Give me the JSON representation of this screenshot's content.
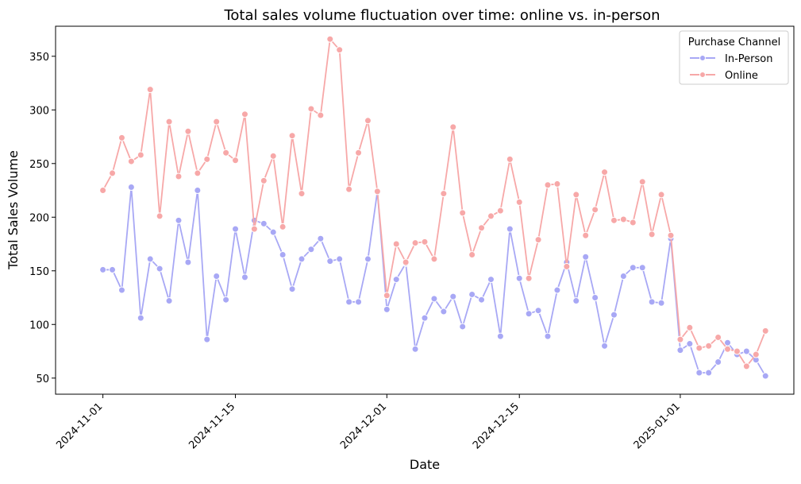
{
  "colors": {
    "in_person": "#a8a8f5",
    "online": "#f7a8a8"
  },
  "chart_data": {
    "type": "line",
    "title": "Total sales volume fluctuation over time: online vs. in-person",
    "xlabel": "Date",
    "ylabel": "Total Sales Volume",
    "x_start": "2024-11-01",
    "x_tick_labels": [
      "2024-11-01",
      "2024-11-15",
      "2024-12-01",
      "2024-12-15",
      "2025-01-01"
    ],
    "y_ticks": [
      50,
      100,
      150,
      200,
      250,
      300,
      350
    ],
    "xlim": [
      "2024-10-27",
      "2025-01-13"
    ],
    "ylim": [
      35,
      378
    ],
    "grid": false,
    "legend": {
      "title": "Purchase Channel",
      "position": "top-right"
    },
    "series": [
      {
        "name": "In-Person",
        "color": "#a8a8f5",
        "values": [
          151,
          151,
          132,
          228,
          106,
          161,
          152,
          122,
          197,
          158,
          225,
          86,
          145,
          123,
          189,
          144,
          197,
          194,
          186,
          165,
          133,
          161,
          170,
          180,
          159,
          161,
          121,
          121,
          161,
          224,
          114,
          142,
          157,
          77,
          106,
          124,
          112,
          126,
          98,
          128,
          123,
          142,
          89,
          189,
          143,
          110,
          113,
          89,
          132,
          158,
          122,
          163,
          125,
          80,
          109,
          145,
          153,
          153,
          121,
          120,
          180,
          76,
          82,
          55,
          55,
          65,
          83,
          72,
          75,
          67,
          52
        ]
      },
      {
        "name": "Online",
        "color": "#f7a8a8",
        "values": [
          225,
          241,
          274,
          252,
          258,
          319,
          201,
          289,
          238,
          280,
          241,
          254,
          289,
          260,
          253,
          296,
          189,
          234,
          257,
          191,
          276,
          222,
          301,
          295,
          366,
          356,
          226,
          260,
          290,
          224,
          127,
          175,
          158,
          176,
          177,
          161,
          222,
          284,
          204,
          165,
          190,
          201,
          206,
          254,
          214,
          143,
          179,
          230,
          231,
          154,
          221,
          183,
          207,
          242,
          197,
          198,
          195,
          233,
          184,
          221,
          183,
          86,
          97,
          78,
          80,
          88,
          77,
          75,
          61,
          72,
          94
        ]
      }
    ]
  }
}
